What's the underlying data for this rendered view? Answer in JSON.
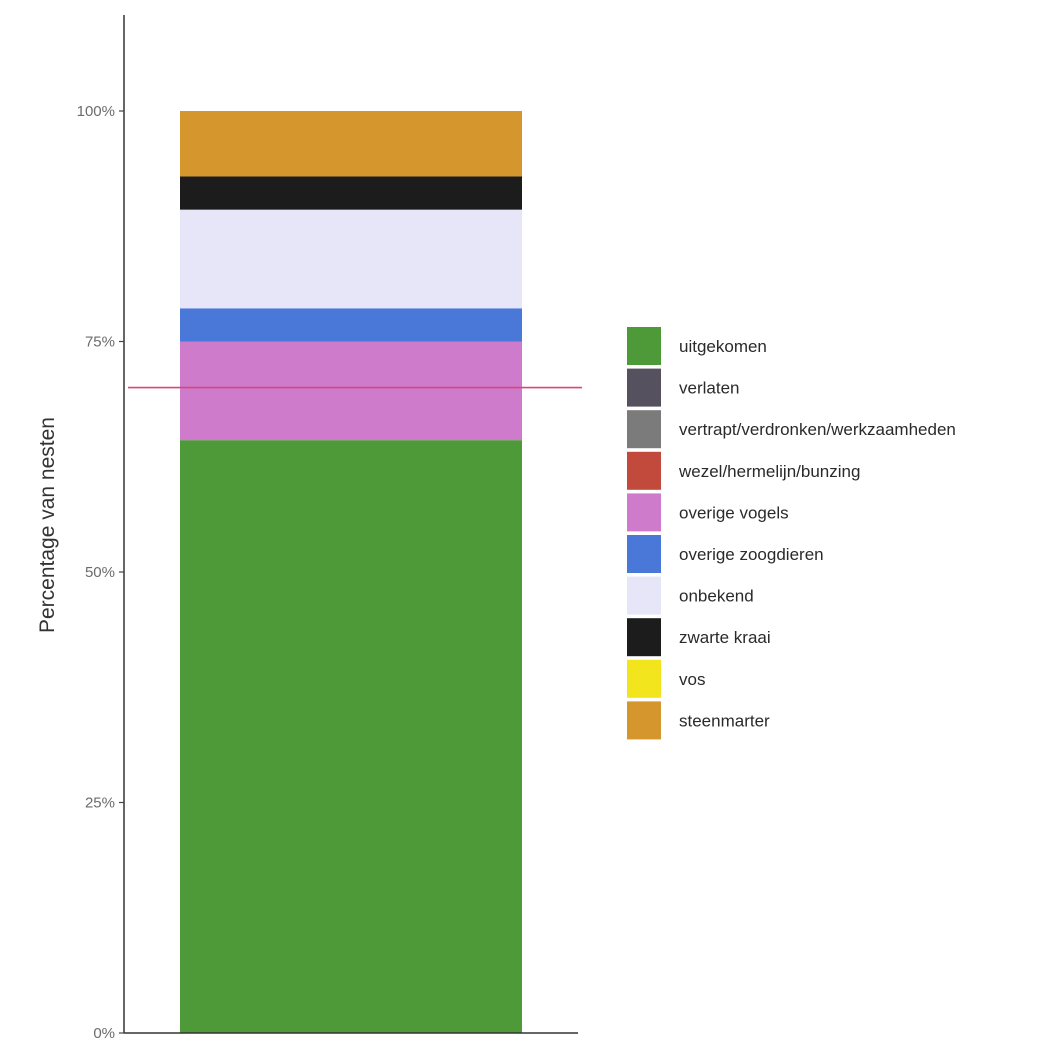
{
  "chart_data": {
    "type": "bar",
    "stacked": true,
    "ylabel": "Percentage van nesten",
    "xlabel": "",
    "ylim": [
      0,
      100
    ],
    "yticks": [
      "0%",
      "25%",
      "50%",
      "75%",
      "100%"
    ],
    "ytick_values": [
      0,
      25,
      50,
      75,
      100
    ],
    "reference_line": {
      "value": 70,
      "color": "#d9467a"
    },
    "segments": [
      {
        "name": "uitgekomen",
        "value": 64.3,
        "color": "#4e9a38"
      },
      {
        "name": "verlaten",
        "value": 0,
        "color": "#56515f"
      },
      {
        "name": "vertrapt/verdronken/werkzaamheden",
        "value": 0,
        "color": "#7b7b7b"
      },
      {
        "name": "wezel/hermelijn/bunzing",
        "value": 0,
        "color": "#c24a3c"
      },
      {
        "name": "overige vogels",
        "value": 10.7,
        "color": "#cf7bcc"
      },
      {
        "name": "overige zoogdieren",
        "value": 3.6,
        "color": "#4a78d8"
      },
      {
        "name": "onbekend",
        "value": 10.7,
        "color": "#e6e6f8"
      },
      {
        "name": "zwarte kraai",
        "value": 3.6,
        "color": "#1c1c1c"
      },
      {
        "name": "vos",
        "value": 0,
        "color": "#f2e51e"
      },
      {
        "name": "steenmarter",
        "value": 7.1,
        "color": "#d6962e"
      }
    ],
    "legend_position": "right"
  }
}
